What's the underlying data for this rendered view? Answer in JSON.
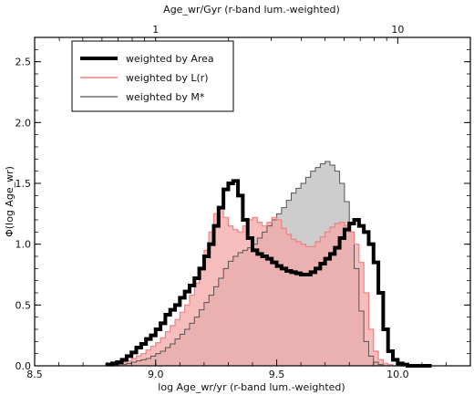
{
  "chart_data": {
    "type": "area",
    "xlabel": "log Age_wr/yr (r-band lum.-weighted)",
    "ylabel": "Φ(log Age_wr)",
    "top_xlabel": "Age_wr/Gyr (r-band lum.-weighted)",
    "xlim": [
      8.5,
      10.3
    ],
    "ylim": [
      0.0,
      2.7
    ],
    "xticks": [
      "8.5",
      "9.0",
      "9.5",
      "10.0"
    ],
    "yticks": [
      "0.0",
      "0.5",
      "1.0",
      "1.5",
      "2.0",
      "2.5"
    ],
    "top_ticks": [
      "1",
      "10"
    ],
    "legend_position": "top-left",
    "x": [
      8.8,
      8.82,
      8.84,
      8.86,
      8.88,
      8.9,
      8.92,
      8.94,
      8.96,
      8.98,
      9.0,
      9.02,
      9.04,
      9.06,
      9.08,
      9.1,
      9.12,
      9.14,
      9.16,
      9.18,
      9.2,
      9.22,
      9.24,
      9.26,
      9.28,
      9.3,
      9.32,
      9.34,
      9.36,
      9.38,
      9.4,
      9.42,
      9.44,
      9.46,
      9.48,
      9.5,
      9.52,
      9.54,
      9.56,
      9.58,
      9.6,
      9.62,
      9.64,
      9.66,
      9.68,
      9.7,
      9.72,
      9.74,
      9.76,
      9.78,
      9.8,
      9.82,
      9.84,
      9.86,
      9.88,
      9.9,
      9.92,
      9.94,
      9.96,
      9.98,
      10.0,
      10.02,
      10.04,
      10.06,
      10.08,
      10.1,
      10.12
    ],
    "series": [
      {
        "name": "weighted by Area",
        "color": "#000000",
        "values": [
          0.01,
          0.02,
          0.03,
          0.05,
          0.08,
          0.11,
          0.15,
          0.18,
          0.22,
          0.25,
          0.3,
          0.35,
          0.42,
          0.46,
          0.5,
          0.56,
          0.61,
          0.66,
          0.72,
          0.8,
          0.9,
          1.0,
          1.15,
          1.3,
          1.45,
          1.5,
          1.52,
          1.4,
          1.2,
          1.05,
          0.95,
          0.92,
          0.9,
          0.88,
          0.85,
          0.82,
          0.8,
          0.78,
          0.77,
          0.76,
          0.75,
          0.75,
          0.77,
          0.8,
          0.84,
          0.88,
          0.92,
          0.97,
          1.05,
          1.12,
          1.17,
          1.2,
          1.15,
          1.1,
          1.0,
          0.85,
          0.6,
          0.3,
          0.12,
          0.05,
          0.02,
          0.01,
          0.0,
          0.0,
          0.0,
          0.0,
          0.0
        ]
      },
      {
        "name": "weighted by L(r)",
        "color": "#f08080",
        "values": [
          0.0,
          0.01,
          0.02,
          0.03,
          0.04,
          0.06,
          0.08,
          0.1,
          0.13,
          0.16,
          0.19,
          0.23,
          0.28,
          0.33,
          0.38,
          0.44,
          0.5,
          0.58,
          0.68,
          0.8,
          0.95,
          1.1,
          1.25,
          1.3,
          1.22,
          1.15,
          1.12,
          1.1,
          1.15,
          1.2,
          1.22,
          1.18,
          1.15,
          1.18,
          1.22,
          1.2,
          1.13,
          1.08,
          1.04,
          1.02,
          1.0,
          0.98,
          0.98,
          1.02,
          1.06,
          1.1,
          1.14,
          1.17,
          1.18,
          1.15,
          1.1,
          1.0,
          0.85,
          0.6,
          0.3,
          0.12,
          0.05,
          0.02,
          0.01,
          0.0,
          0.0,
          0.0,
          0.0,
          0.0,
          0.0,
          0.0,
          0.0
        ]
      },
      {
        "name": "weighted by M*",
        "color": "#555555",
        "values": [
          0.0,
          0.0,
          0.01,
          0.01,
          0.02,
          0.03,
          0.04,
          0.05,
          0.06,
          0.08,
          0.1,
          0.12,
          0.15,
          0.18,
          0.22,
          0.26,
          0.3,
          0.35,
          0.4,
          0.46,
          0.52,
          0.58,
          0.65,
          0.72,
          0.8,
          0.86,
          0.9,
          0.93,
          0.95,
          0.97,
          1.0,
          1.05,
          1.1,
          1.15,
          1.2,
          1.25,
          1.3,
          1.36,
          1.42,
          1.46,
          1.5,
          1.55,
          1.6,
          1.63,
          1.66,
          1.68,
          1.65,
          1.6,
          1.5,
          1.35,
          1.1,
          0.8,
          0.45,
          0.2,
          0.08,
          0.03,
          0.01,
          0.0,
          0.0,
          0.0,
          0.0,
          0.0,
          0.0,
          0.0,
          0.0,
          0.0,
          0.0
        ]
      }
    ]
  }
}
